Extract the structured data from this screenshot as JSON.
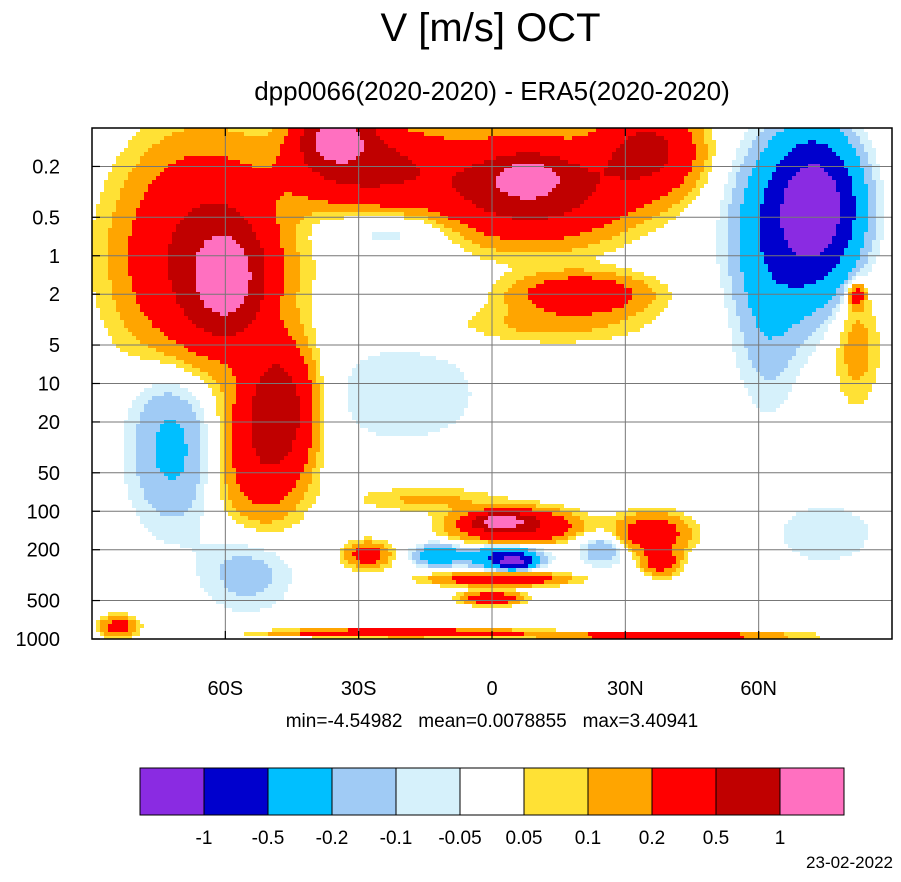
{
  "title": "V [m/s] OCT",
  "subtitle": "dpp0066(2020-2020) - ERA5(2020-2020)",
  "stats": {
    "min_label": "min=-4.54982",
    "mean_label": "mean=0.0078855",
    "max_label": "max=3.40941"
  },
  "date": "23-02-2022",
  "chart_data": {
    "type": "heatmap",
    "title": "V [m/s] OCT",
    "subtitle": "dpp0066(2020-2020) - ERA5(2020-2020)",
    "x_axis": {
      "range": [
        -90,
        90
      ],
      "ticks": [
        -60,
        -30,
        0,
        30,
        60
      ],
      "tick_labels": [
        "60S",
        "30S",
        "0",
        "30N",
        "60N"
      ],
      "grid_lines": [
        -60,
        -30,
        0,
        30,
        60
      ]
    },
    "y_axis": {
      "scale": "log",
      "reversed": true,
      "range": [
        0.1,
        1000
      ],
      "ticks": [
        0.2,
        0.5,
        1,
        2,
        5,
        10,
        20,
        50,
        100,
        200,
        500,
        1000
      ],
      "tick_labels": [
        "0.2",
        "0.5",
        "1",
        "2",
        "5",
        "10",
        "20",
        "50",
        "100",
        "200",
        "500",
        "1000"
      ]
    },
    "grid": true,
    "min": -4.54982,
    "mean": 0.0078855,
    "max": 3.40941,
    "colorbar": {
      "levels": [
        -1,
        -0.5,
        -0.2,
        -0.1,
        -0.05,
        0.05,
        0.1,
        0.2,
        0.5,
        1
      ],
      "level_labels": [
        "-1",
        "-0.5",
        "-0.2",
        "-0.1",
        "-0.05",
        "0.05",
        "0.1",
        "0.2",
        "0.5",
        "1"
      ],
      "colors": [
        "#8a2be2",
        "#0000cd",
        "#00bfff",
        "#a0cbf5",
        "#d6f1fb",
        "#ffffff",
        "#ffe135",
        "#ffa500",
        "#ff0000",
        "#c00000",
        "#ff70c0"
      ]
    },
    "features": [
      {
        "lat": -60,
        "p": 1.5,
        "v": 1.2,
        "wlat": 7,
        "wlp": 0.35
      },
      {
        "lat": -65,
        "p": 1.0,
        "v": 0.6,
        "wlat": 16,
        "wlp": 0.75
      },
      {
        "lat": -48,
        "p": 15,
        "v": 0.7,
        "wlat": 7,
        "wlp": 0.45
      },
      {
        "lat": -52,
        "p": 40,
        "v": 0.3,
        "wlat": 9,
        "wlp": 0.5
      },
      {
        "lat": -28,
        "p": 0.2,
        "v": 0.6,
        "wlat": 16,
        "wlp": 0.3
      },
      {
        "lat": -35,
        "p": 0.12,
        "v": 1.2,
        "wlat": 7,
        "wlp": 0.2
      },
      {
        "lat": 8,
        "p": 0.3,
        "v": 0.8,
        "wlat": 20,
        "wlp": 0.35
      },
      {
        "lat": 8,
        "p": 0.25,
        "v": 1.2,
        "wlat": 6,
        "wlp": 0.12
      },
      {
        "lat": 35,
        "p": 0.15,
        "v": 0.6,
        "wlat": 10,
        "wlp": 0.3
      },
      {
        "lat": -20,
        "p": 0.6,
        "v": -0.12,
        "wlat": 17,
        "wlp": 0.18
      },
      {
        "lat": 20,
        "p": 2.0,
        "v": 0.4,
        "wlat": 14,
        "wlp": 0.15
      },
      {
        "lat": 12,
        "p": 3.5,
        "v": 0.12,
        "wlat": 22,
        "wlp": 0.15
      },
      {
        "lat": -72,
        "p": 30,
        "v": -0.25,
        "wlat": 9,
        "wlp": 0.6
      },
      {
        "lat": -55,
        "p": 300,
        "v": -0.15,
        "wlat": 10,
        "wlp": 0.3
      },
      {
        "lat": -20,
        "p": 12,
        "v": -0.08,
        "wlat": 22,
        "wlp": 0.5
      },
      {
        "lat": 73,
        "p": 0.4,
        "v": -1.2,
        "wlat": 8,
        "wlp": 0.45
      },
      {
        "lat": 68,
        "p": 0.6,
        "v": -0.6,
        "wlat": 11,
        "wlp": 0.6
      },
      {
        "lat": 62,
        "p": 3,
        "v": -0.15,
        "wlat": 7,
        "wlp": 0.7
      },
      {
        "lat": 82,
        "p": 5,
        "v": 0.15,
        "wlat": 5,
        "wlp": 0.45
      },
      {
        "lat": 82,
        "p": 2,
        "v": 0.3,
        "wlat": 2,
        "wlp": 0.1
      },
      {
        "lat": 5,
        "p": 130,
        "v": 0.6,
        "wlat": 12,
        "wlp": 0.12
      },
      {
        "lat": 2,
        "p": 120,
        "v": 1.2,
        "wlat": 5,
        "wlp": 0.05
      },
      {
        "lat": -15,
        "p": 80,
        "v": 0.12,
        "wlat": 16,
        "wlp": 0.1
      },
      {
        "lat": 3,
        "p": 230,
        "v": -0.7,
        "wlat": 7,
        "wlp": 0.08
      },
      {
        "lat": 5,
        "p": 250,
        "v": -1.2,
        "wlat": 3,
        "wlp": 0.04
      },
      {
        "lat": -12,
        "p": 220,
        "v": -0.4,
        "wlat": 5,
        "wlp": 0.08
      },
      {
        "lat": -28,
        "p": 220,
        "v": 0.3,
        "wlat": 5,
        "wlp": 0.1
      },
      {
        "lat": 2,
        "p": 340,
        "v": 0.4,
        "wlat": 14,
        "wlp": 0.05
      },
      {
        "lat": 36,
        "p": 150,
        "v": 0.35,
        "wlat": 8,
        "wlp": 0.15
      },
      {
        "lat": 38,
        "p": 250,
        "v": 0.3,
        "wlat": 4,
        "wlp": 0.1
      },
      {
        "lat": 25,
        "p": 200,
        "v": -0.2,
        "wlat": 5,
        "wlp": 0.12
      },
      {
        "lat": 75,
        "p": 150,
        "v": -0.08,
        "wlat": 14,
        "wlp": 0.3
      },
      {
        "lat": 0,
        "p": 480,
        "v": 0.4,
        "wlat": 6,
        "wlp": 0.05
      },
      {
        "lat": -20,
        "p": 900,
        "v": 0.5,
        "wlat": 25,
        "wlp": 0.03
      },
      {
        "lat": 40,
        "p": 950,
        "v": 0.4,
        "wlat": 25,
        "wlp": 0.03
      },
      {
        "lat": -84,
        "p": 800,
        "v": 0.3,
        "wlat": 4,
        "wlp": 0.08
      }
    ]
  }
}
